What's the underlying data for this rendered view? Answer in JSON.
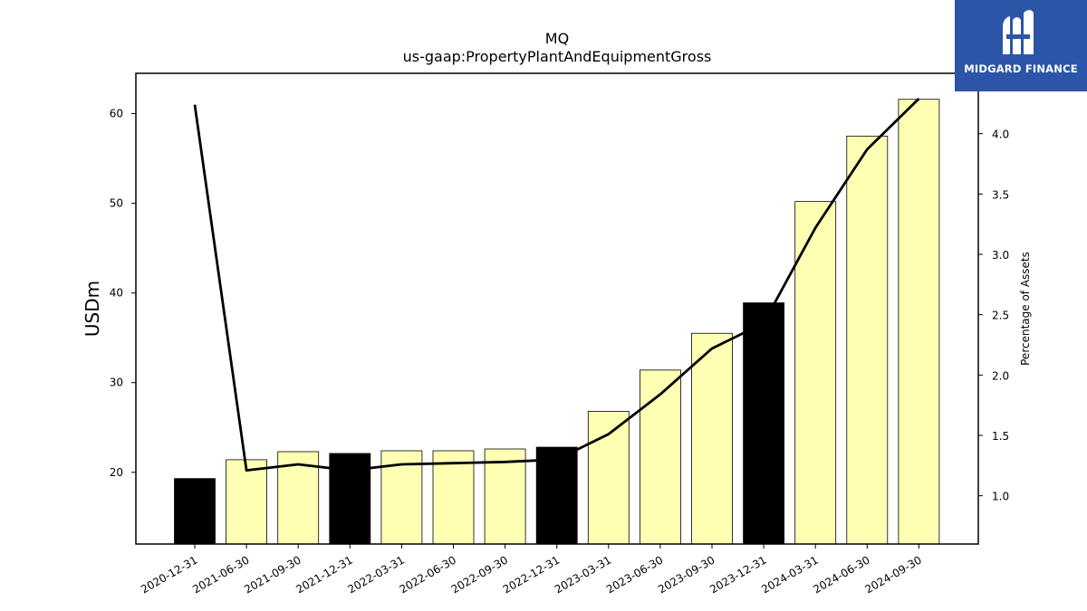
{
  "brand": {
    "logo_text": "MIDGARD FINANCE"
  },
  "colors": {
    "annual_bar": "#000000",
    "quarter_bar": "#ffffb3",
    "bar_edge": "#000000",
    "line": "#000000"
  },
  "chart_data": {
    "type": "bar",
    "title": "MQ",
    "subtitle": "us-gaap:PropertyPlantAndEquipmentGross",
    "ylabel": "USDm",
    "y2label": "Percentage of Assets",
    "ylim": [
      12,
      64.5
    ],
    "y2lim": [
      0.6,
      4.5
    ],
    "yticks": [
      20,
      30,
      40,
      50,
      60
    ],
    "y2ticks": [
      "1.0",
      "1.5",
      "2.0",
      "2.5",
      "3.0",
      "3.5",
      "4.0"
    ],
    "categories": [
      "2020-12-31",
      "2021-06-30",
      "2021-09-30",
      "2021-12-31",
      "2022-03-31",
      "2022-06-30",
      "2022-09-30",
      "2022-12-31",
      "2023-03-31",
      "2023-06-30",
      "2023-09-30",
      "2023-12-31",
      "2024-03-31",
      "2024-06-30",
      "2024-09-30"
    ],
    "series": [
      {
        "type": "bar",
        "axis": "left",
        "values": [
          19.3,
          21.4,
          22.3,
          22.1,
          22.4,
          22.4,
          22.6,
          22.8,
          26.8,
          31.4,
          35.5,
          38.9,
          50.2,
          57.5,
          61.6
        ],
        "annual": [
          true,
          false,
          false,
          true,
          false,
          false,
          false,
          true,
          false,
          false,
          false,
          true,
          false,
          false,
          false
        ]
      },
      {
        "type": "line",
        "axis": "right",
        "values": [
          4.24,
          1.21,
          1.26,
          1.21,
          1.26,
          1.27,
          1.28,
          1.3,
          1.51,
          1.84,
          2.22,
          2.43,
          3.22,
          3.87,
          4.29
        ]
      }
    ],
    "grid": false
  }
}
